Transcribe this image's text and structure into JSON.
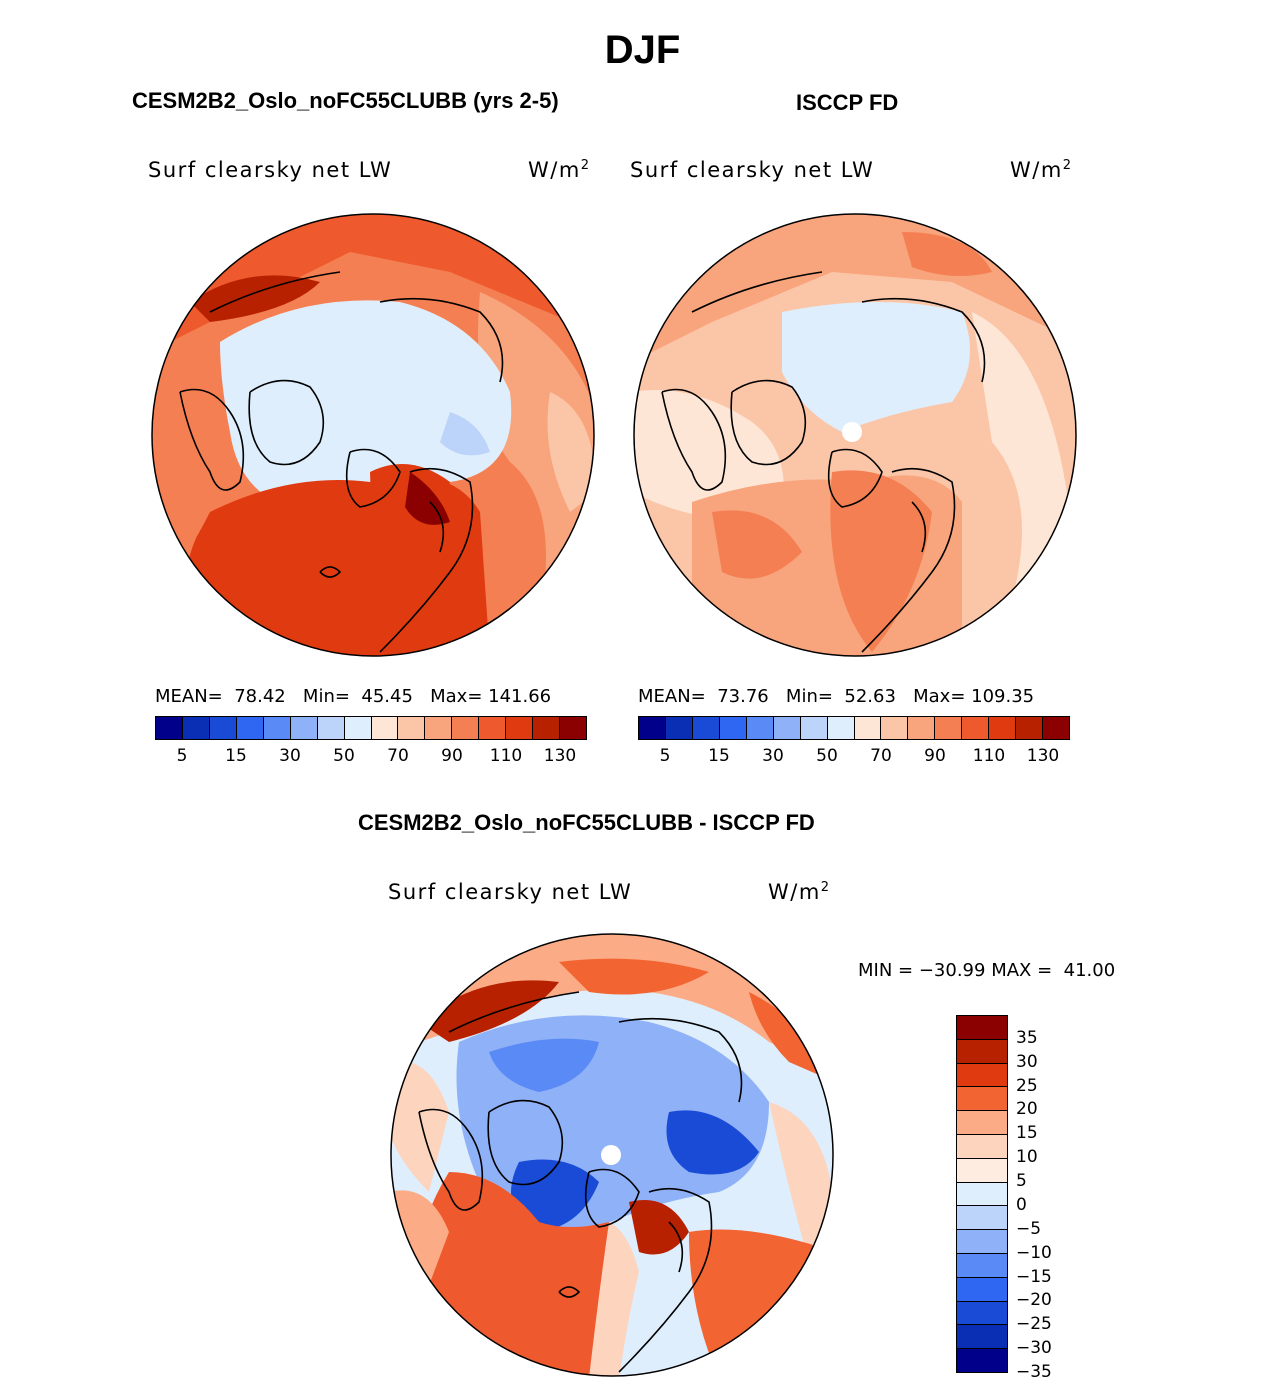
{
  "page_title": "DJF",
  "panels": {
    "model": {
      "title": "CESM2B2_Oslo_noFC55CLUBB (yrs 2-5)",
      "variable": "Surf clearsky net LW",
      "units": "W/m",
      "units_sup": "2",
      "stats": {
        "mean_label": "MEAN=",
        "mean": "78.42",
        "min_label": "Min=",
        "min": "45.45",
        "max_label": "Max=",
        "max": "141.66"
      }
    },
    "obs": {
      "title": "ISCCP FD",
      "variable": "Surf clearsky net LW",
      "units": "W/m",
      "units_sup": "2",
      "stats": {
        "mean_label": "MEAN=",
        "mean": "73.76",
        "min_label": "Min=",
        "min": "52.63",
        "max_label": "Max=",
        "max": "109.35"
      }
    },
    "diff": {
      "title": "CESM2B2_Oslo_noFC55CLUBB - ISCCP FD",
      "variable": "Surf clearsky net LW",
      "units": "W/m",
      "units_sup": "2",
      "minmax": {
        "min_label": "MIN =",
        "min": "−30.99",
        "max_label": "MAX =",
        "max": "41.00"
      }
    }
  },
  "colorbar_abs": {
    "colors": [
      "#00008b",
      "#0a2fb4",
      "#1a4bd6",
      "#2f66f2",
      "#5a8af5",
      "#8fb1f7",
      "#bcd3fa",
      "#deeefc",
      "#fde6d6",
      "#fbc6a8",
      "#f8a47c",
      "#f47f52",
      "#ee5a2e",
      "#e03a10",
      "#b72100",
      "#8b0000"
    ],
    "labels": [
      "5",
      "15",
      "30",
      "50",
      "70",
      "90",
      "110",
      "130"
    ]
  },
  "colorbar_diff": {
    "colors": [
      "#8b0000",
      "#b72100",
      "#e03a10",
      "#f26432",
      "#fbac86",
      "#fdd4bd",
      "#fdecdf",
      "#deeefc",
      "#bcd3fa",
      "#8fb1f7",
      "#5a8af5",
      "#2f66f2",
      "#1a4bd6",
      "#0a2fb4",
      "#00008b"
    ],
    "labels": [
      "35",
      "30",
      "25",
      "20",
      "15",
      "10",
      "5",
      "0",
      "−5",
      "−10",
      "−15",
      "−20",
      "−25",
      "−30",
      "−35"
    ]
  }
}
